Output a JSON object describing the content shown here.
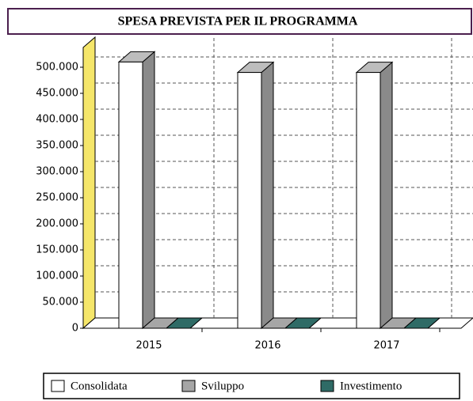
{
  "chart_data": {
    "type": "bar3d",
    "title": "SPESA PREVISTA PER IL PROGRAMMA",
    "categories": [
      "2015",
      "2016",
      "2017"
    ],
    "series": [
      {
        "name": "Consolidata",
        "color": "#ffffff",
        "values": [
          510000,
          490000,
          490000
        ]
      },
      {
        "name": "Sviluppo",
        "color": "#a6a6a6",
        "values": [
          0,
          0,
          0
        ]
      },
      {
        "name": "Investimento",
        "color": "#2f6b66",
        "values": [
          0,
          0,
          0
        ]
      }
    ],
    "ylim": [
      0,
      500000
    ],
    "yticks": [
      0,
      {
        "value": 50000,
        "label": "50.000"
      },
      {
        "value": 100000,
        "label": "100.000"
      },
      {
        "value": 150000,
        "label": "150.000"
      },
      {
        "value": 200000,
        "label": "200.000"
      },
      {
        "value": 250000,
        "label": "250.000"
      },
      {
        "value": 300000,
        "label": "300.000"
      },
      {
        "value": 350000,
        "label": "350.000"
      },
      {
        "value": 400000,
        "label": "400.000"
      },
      {
        "value": 450000,
        "label": "450.000"
      },
      {
        "value": 500000,
        "label": "500.000"
      }
    ],
    "grid": true,
    "legend": "bottom",
    "wall_color": "#f5e66a"
  }
}
